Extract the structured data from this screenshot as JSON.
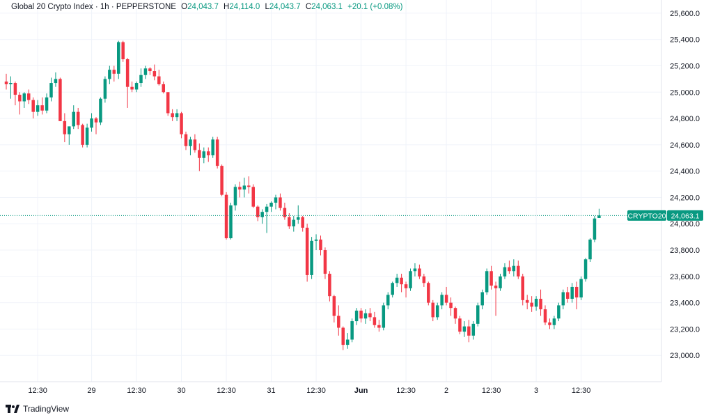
{
  "legend": {
    "title": "Global 20 Crypto Index · 1h · PEPPERSTONE",
    "o_label": "O",
    "o": "24,043.7",
    "h_label": "H",
    "h": "24,114.0",
    "l_label": "L",
    "l": "24,043.7",
    "c_label": "C",
    "c": "24,063.1",
    "change": "+20.1 (+0.08%)"
  },
  "price_tag": {
    "symbol": "CRYPTO20",
    "price": "24,063.1"
  },
  "branding": {
    "name": "TradingView",
    "icon": "tradingview-logo-icon"
  },
  "colors": {
    "up": "#089981",
    "down": "#f23645",
    "last_line": "#089981",
    "grid": "#f0f3fa"
  },
  "chart_data": {
    "type": "candlestick",
    "ylim": [
      22800,
      25700
    ],
    "yticks": [
      23000,
      23200,
      23400,
      23600,
      23800,
      24000,
      24200,
      24400,
      24600,
      24800,
      25000,
      25200,
      25400,
      25600
    ],
    "ytick_labels": [
      "23,000.0",
      "23,200.0",
      "23,400.0",
      "23,600.0",
      "23,800.0",
      "24,000.0",
      "24,200.0",
      "24,400.0",
      "24,600.0",
      "24,800.0",
      "25,000.0",
      "25,200.0",
      "25,400.0",
      "25,600.0"
    ],
    "xticks": [
      {
        "i": 7,
        "label": "12:30"
      },
      {
        "i": 19,
        "label": "29"
      },
      {
        "i": 29,
        "label": "12:30"
      },
      {
        "i": 39,
        "label": "30"
      },
      {
        "i": 49,
        "label": "12:30"
      },
      {
        "i": 59,
        "label": "31"
      },
      {
        "i": 69,
        "label": "12:30"
      },
      {
        "i": 79,
        "label": "Jun"
      },
      {
        "i": 89,
        "label": "12:30"
      },
      {
        "i": 98,
        "label": "2"
      },
      {
        "i": 108,
        "label": "12:30"
      },
      {
        "i": 118,
        "label": "3"
      },
      {
        "i": 128,
        "label": "12:30"
      }
    ],
    "last_price": 24063.1,
    "ohlc": [
      [
        25080,
        25140,
        25020,
        25060
      ],
      [
        25060,
        25120,
        24950,
        25070
      ],
      [
        25070,
        25080,
        24900,
        24980
      ],
      [
        24980,
        25000,
        24830,
        24930
      ],
      [
        24930,
        25000,
        24880,
        24990
      ],
      [
        24990,
        25020,
        24910,
        24940
      ],
      [
        24940,
        24960,
        24800,
        24850
      ],
      [
        24850,
        24940,
        24820,
        24900
      ],
      [
        24900,
        24960,
        24830,
        24860
      ],
      [
        24860,
        24990,
        24840,
        24960
      ],
      [
        24960,
        25110,
        24930,
        25070
      ],
      [
        25070,
        25150,
        25040,
        25100
      ],
      [
        25100,
        25110,
        24780,
        24780
      ],
      [
        24780,
        24840,
        24620,
        24680
      ],
      [
        24680,
        24740,
        24600,
        24740
      ],
      [
        24740,
        24900,
        24720,
        24850
      ],
      [
        24850,
        24880,
        24720,
        24750
      ],
      [
        24750,
        24760,
        24580,
        24600
      ],
      [
        24600,
        24760,
        24580,
        24730
      ],
      [
        24730,
        24840,
        24700,
        24800
      ],
      [
        24800,
        24810,
        24680,
        24770
      ],
      [
        24770,
        24960,
        24750,
        24950
      ],
      [
        24950,
        25120,
        24920,
        25100
      ],
      [
        25100,
        25200,
        25060,
        25170
      ],
      [
        25170,
        25200,
        25080,
        25140
      ],
      [
        25140,
        25390,
        25100,
        25380
      ],
      [
        25380,
        25390,
        25230,
        25250
      ],
      [
        25250,
        25260,
        24880,
        25040
      ],
      [
        25040,
        25080,
        25000,
        25020
      ],
      [
        25020,
        25080,
        25000,
        25070
      ],
      [
        25070,
        25180,
        25040,
        25130
      ],
      [
        25130,
        25200,
        25100,
        25180
      ],
      [
        25180,
        25190,
        25130,
        25160
      ],
      [
        25160,
        25210,
        25090,
        25120
      ],
      [
        25120,
        25170,
        25050,
        25060
      ],
      [
        25060,
        25080,
        24990,
        25000
      ],
      [
        25000,
        25000,
        24820,
        24840
      ],
      [
        24840,
        24870,
        24780,
        24810
      ],
      [
        24810,
        24870,
        24780,
        24840
      ],
      [
        24840,
        24850,
        24650,
        24680
      ],
      [
        24680,
        24700,
        24560,
        24590
      ],
      [
        24590,
        24660,
        24520,
        24640
      ],
      [
        24640,
        24680,
        24540,
        24560
      ],
      [
        24560,
        24610,
        24400,
        24500
      ],
      [
        24500,
        24580,
        24460,
        24550
      ],
      [
        24550,
        24580,
        24470,
        24520
      ],
      [
        24520,
        24660,
        24500,
        24640
      ],
      [
        24640,
        24660,
        24420,
        24440
      ],
      [
        24440,
        24450,
        24210,
        24220
      ],
      [
        24220,
        24240,
        23880,
        23890
      ],
      [
        23890,
        24160,
        23880,
        24140
      ],
      [
        24140,
        24300,
        24100,
        24280
      ],
      [
        24280,
        24320,
        24200,
        24260
      ],
      [
        24260,
        24350,
        24200,
        24290
      ],
      [
        24290,
        24360,
        24230,
        24280
      ],
      [
        24280,
        24300,
        24120,
        24130
      ],
      [
        24130,
        24140,
        24020,
        24050
      ],
      [
        24050,
        24110,
        24000,
        24090
      ],
      [
        24090,
        24150,
        23930,
        24130
      ],
      [
        24130,
        24170,
        24090,
        24160
      ],
      [
        24160,
        24220,
        24110,
        24200
      ],
      [
        24200,
        24230,
        24100,
        24120
      ],
      [
        24120,
        24160,
        24030,
        24050
      ],
      [
        24050,
        24080,
        23960,
        23980
      ],
      [
        23980,
        24060,
        23940,
        24030
      ],
      [
        24030,
        24140,
        24000,
        24050
      ],
      [
        24050,
        24060,
        23940,
        23970
      ],
      [
        23970,
        24000,
        23560,
        23610
      ],
      [
        23610,
        23900,
        23580,
        23870
      ],
      [
        23870,
        23920,
        23800,
        23880
      ],
      [
        23880,
        23910,
        23760,
        23800
      ],
      [
        23800,
        23820,
        23580,
        23620
      ],
      [
        23620,
        23640,
        23410,
        23450
      ],
      [
        23450,
        23460,
        23250,
        23300
      ],
      [
        23300,
        23380,
        23150,
        23210
      ],
      [
        23210,
        23220,
        23040,
        23080
      ],
      [
        23080,
        23170,
        23050,
        23120
      ],
      [
        23120,
        23280,
        23100,
        23260
      ],
      [
        23260,
        23360,
        23230,
        23340
      ],
      [
        23340,
        23360,
        23250,
        23280
      ],
      [
        23280,
        23350,
        23240,
        23320
      ],
      [
        23320,
        23360,
        23260,
        23290
      ],
      [
        23290,
        23330,
        23210,
        23230
      ],
      [
        23230,
        23270,
        23180,
        23210
      ],
      [
        23210,
        23400,
        23190,
        23380
      ],
      [
        23380,
        23480,
        23350,
        23460
      ],
      [
        23460,
        23560,
        23440,
        23550
      ],
      [
        23550,
        23620,
        23520,
        23590
      ],
      [
        23590,
        23620,
        23480,
        23540
      ],
      [
        23540,
        23560,
        23440,
        23510
      ],
      [
        23510,
        23660,
        23490,
        23640
      ],
      [
        23640,
        23700,
        23600,
        23660
      ],
      [
        23660,
        23690,
        23580,
        23600
      ],
      [
        23600,
        23620,
        23520,
        23550
      ],
      [
        23550,
        23560,
        23380,
        23400
      ],
      [
        23400,
        23420,
        23260,
        23290
      ],
      [
        23290,
        23400,
        23270,
        23380
      ],
      [
        23380,
        23480,
        23350,
        23460
      ],
      [
        23460,
        23520,
        23380,
        23400
      ],
      [
        23400,
        23440,
        23300,
        23360
      ],
      [
        23360,
        23370,
        23240,
        23280
      ],
      [
        23280,
        23300,
        23160,
        23180
      ],
      [
        23180,
        23260,
        23140,
        23220
      ],
      [
        23220,
        23270,
        23100,
        23150
      ],
      [
        23150,
        23260,
        23120,
        23240
      ],
      [
        23240,
        23400,
        23220,
        23380
      ],
      [
        23380,
        23500,
        23350,
        23480
      ],
      [
        23480,
        23660,
        23460,
        23640
      ],
      [
        23640,
        23680,
        23500,
        23530
      ],
      [
        23530,
        23560,
        23300,
        23510
      ],
      [
        23510,
        23620,
        23490,
        23600
      ],
      [
        23600,
        23700,
        23580,
        23670
      ],
      [
        23670,
        23720,
        23620,
        23640
      ],
      [
        23640,
        23730,
        23600,
        23680
      ],
      [
        23680,
        23720,
        23580,
        23600
      ],
      [
        23600,
        23620,
        23380,
        23420
      ],
      [
        23420,
        23460,
        23350,
        23400
      ],
      [
        23400,
        23450,
        23330,
        23370
      ],
      [
        23370,
        23450,
        23340,
        23430
      ],
      [
        23430,
        23500,
        23300,
        23350
      ],
      [
        23350,
        23380,
        23230,
        23250
      ],
      [
        23250,
        23280,
        23200,
        23230
      ],
      [
        23230,
        23300,
        23200,
        23280
      ],
      [
        23280,
        23400,
        23260,
        23380
      ],
      [
        23380,
        23500,
        23350,
        23480
      ],
      [
        23480,
        23520,
        23400,
        23430
      ],
      [
        23430,
        23550,
        23400,
        23520
      ],
      [
        23520,
        23560,
        23350,
        23440
      ],
      [
        23440,
        23600,
        23420,
        23580
      ],
      [
        23580,
        23740,
        23560,
        23730
      ],
      [
        23730,
        23890,
        23710,
        23880
      ],
      [
        23880,
        24060,
        23860,
        24040
      ],
      [
        24043.7,
        24114,
        24043.7,
        24063.1
      ]
    ]
  }
}
